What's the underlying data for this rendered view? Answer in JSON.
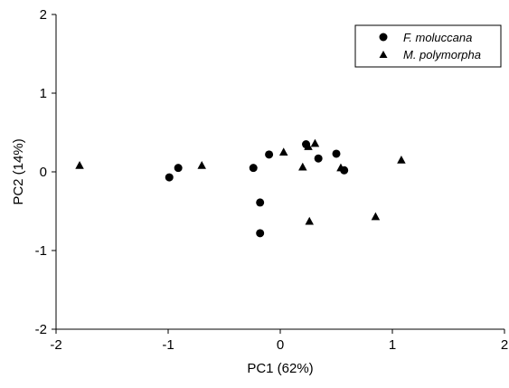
{
  "chart_data": {
    "type": "scatter",
    "title": "",
    "xlabel": "PC1 (62%)",
    "ylabel": "PC2 (14%)",
    "xlim": [
      -2,
      2
    ],
    "ylim": [
      -2,
      2
    ],
    "xticks": [
      "-2",
      "-1",
      "0",
      "1",
      "2"
    ],
    "yticks": [
      "-2",
      "-1",
      "0",
      "1",
      "2"
    ],
    "grid": false,
    "legend_position": "top-right",
    "series": [
      {
        "name": "F. moluccana",
        "marker": "circle",
        "color": "#000000",
        "x": [
          -0.99,
          -0.91,
          -0.24,
          -0.18,
          -0.18,
          -0.1,
          0.23,
          0.34,
          0.5,
          0.57
        ],
        "y": [
          -0.07,
          0.05,
          0.05,
          -0.39,
          -0.78,
          0.22,
          0.35,
          0.17,
          0.23,
          0.02
        ]
      },
      {
        "name": "M. polymorpha",
        "marker": "triangle",
        "color": "#000000",
        "x": [
          -1.79,
          -0.7,
          0.03,
          0.2,
          0.25,
          0.26,
          0.31,
          0.54,
          0.85,
          1.08
        ],
        "y": [
          0.08,
          0.08,
          0.25,
          0.06,
          0.32,
          -0.63,
          0.36,
          0.05,
          -0.57,
          0.15
        ]
      }
    ]
  }
}
